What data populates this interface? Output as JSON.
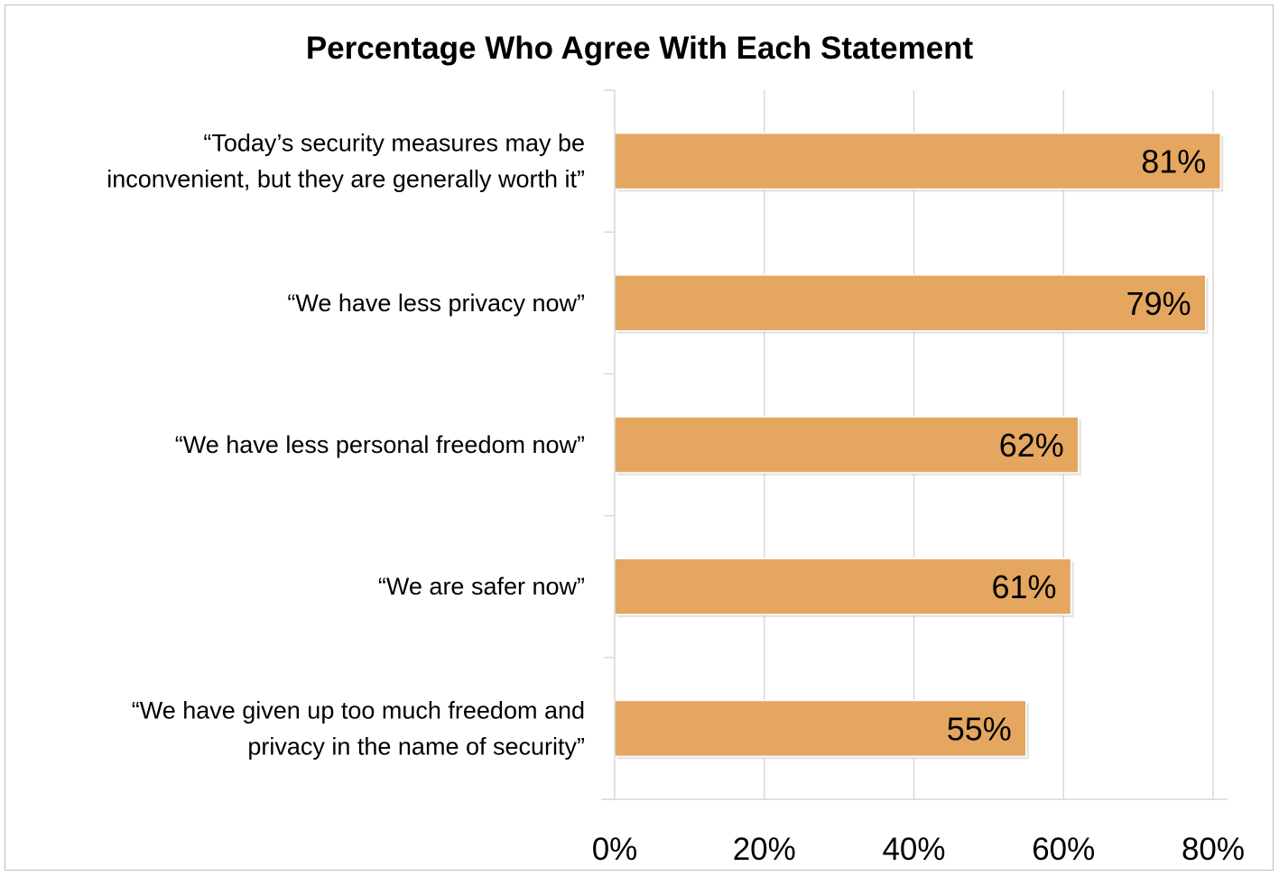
{
  "chart_data": {
    "type": "bar",
    "orientation": "horizontal",
    "title": "Percentage Who Agree With Each Statement",
    "categories": [
      [
        "“Today’s security measures may be",
        "inconvenient, but they are generally worth it”"
      ],
      [
        "“We have less privacy now”"
      ],
      [
        "“We have less personal freedom now”"
      ],
      [
        "“We are safer now”"
      ],
      [
        "“We have given up too much freedom and",
        "privacy in the name of security”"
      ]
    ],
    "values": [
      81,
      79,
      62,
      61,
      55
    ],
    "data_labels": [
      "81%",
      "79%",
      "62%",
      "61%",
      "55%"
    ],
    "xlim": [
      0,
      80
    ],
    "x_ticks": [
      0,
      20,
      40,
      60,
      80
    ],
    "x_tick_labels": [
      "0%",
      "20%",
      "40%",
      "60%",
      "80%"
    ],
    "xlabel": "",
    "ylabel": "",
    "grid": "vertical",
    "legend": "none",
    "bar_color": "#E5A660",
    "bar_edge_color": "#ffffff",
    "grid_color": "#d9d9d9"
  }
}
